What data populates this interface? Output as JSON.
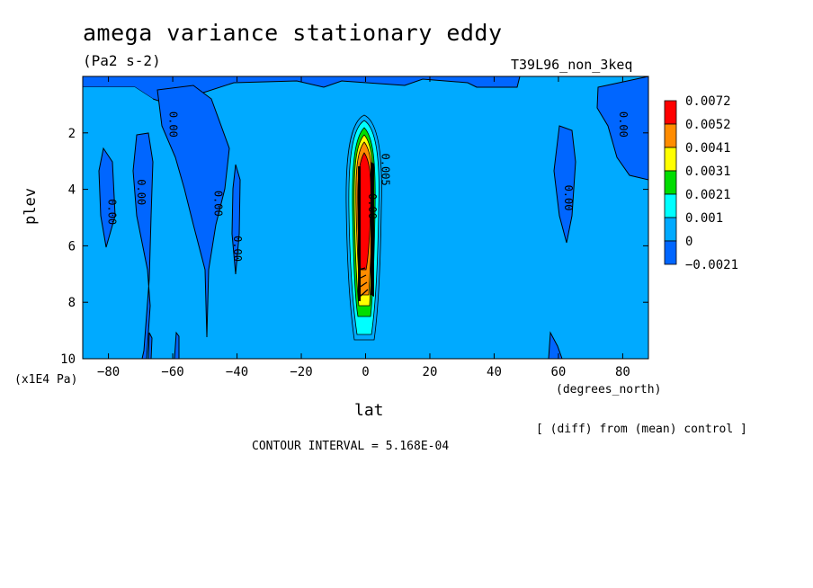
{
  "header": {
    "title": "amega variance stationary eddy",
    "subtitle": "(Pa2 s-2)",
    "run_label": "T39L96_non_3keq"
  },
  "footer": {
    "diff_note": "[ (diff) from (mean) control ]",
    "contour_note": "CONTOUR INTERVAL = 5.168E-04"
  },
  "colors": {
    "background_field": "#00aaff",
    "negative_field": "#0066ff",
    "dark_blue": "#1e3ce6"
  },
  "chart_data": {
    "type": "heatmap",
    "xlabel": "lat",
    "x_unit_label": "(degrees_north)",
    "ylabel": "plev",
    "y_unit_label": "(x1E4 Pa)",
    "xlim": [
      -88,
      88
    ],
    "ylim": [
      10,
      0
    ],
    "x_ticks": [
      -80,
      -60,
      -40,
      -20,
      0,
      20,
      40,
      60,
      80
    ],
    "y_ticks": [
      2,
      4,
      6,
      8,
      10
    ],
    "contour_labels": [
      {
        "text": "0.00",
        "lat": -80,
        "plev": 4.8
      },
      {
        "text": "0.00",
        "lat": -71,
        "plev": 4.1
      },
      {
        "text": "0.00",
        "lat": -61,
        "plev": 1.7
      },
      {
        "text": "0.00",
        "lat": -47,
        "plev": 4.5
      },
      {
        "text": "0.00",
        "lat": -41,
        "plev": 6.1
      },
      {
        "text": "0.00",
        "lat": 62,
        "plev": 4.3
      },
      {
        "text": "0.00",
        "lat": 79,
        "plev": 1.7
      },
      {
        "text": "0.00",
        "lat": 1,
        "plev": 4.6
      },
      {
        "text": "0.005",
        "lat": 5,
        "plev": 3.3
      }
    ],
    "colorbar": {
      "levels": [
        "0.0072",
        "0.0052",
        "0.0041",
        "0.0031",
        "0.0021",
        "0.001",
        "0",
        "-0.0021"
      ],
      "colors": [
        "#ff0000",
        "#ff8c00",
        "#ffff00",
        "#00dd00",
        "#00ffff",
        "#00aaff",
        "#0066ff"
      ]
    }
  }
}
